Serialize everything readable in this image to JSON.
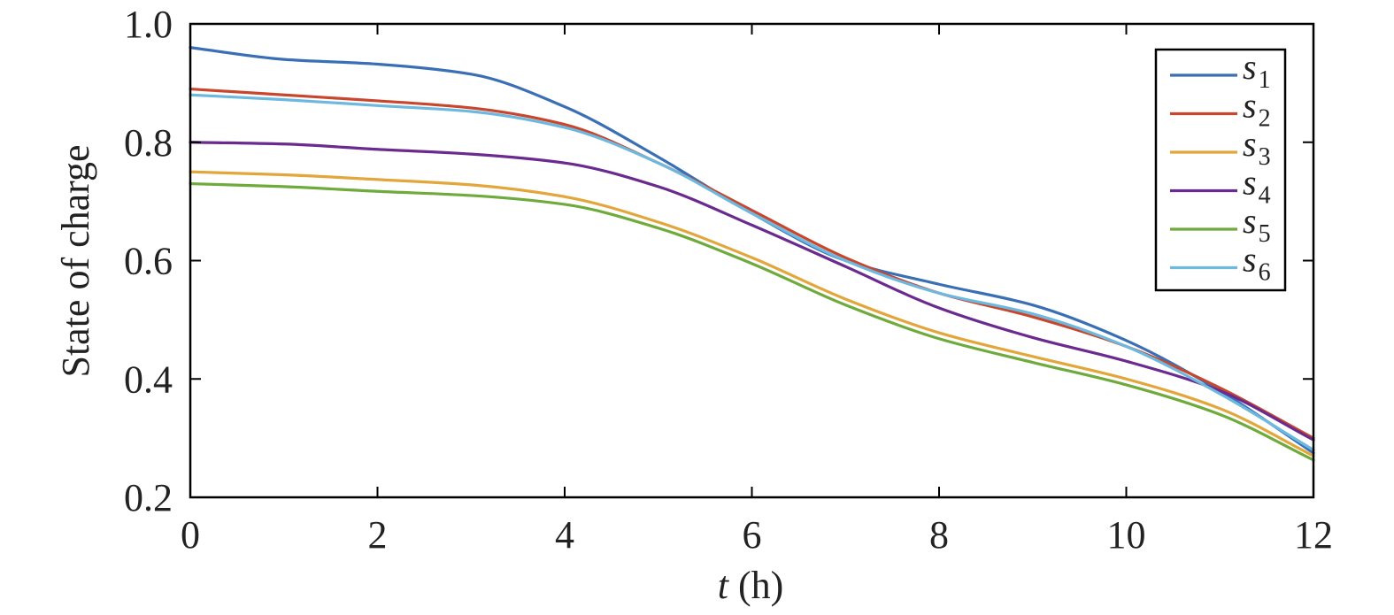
{
  "chart_data": {
    "type": "line",
    "xlabel_var": "t",
    "xlabel_unit": " (h)",
    "ylabel": "State of charge",
    "xlim": [
      0,
      12
    ],
    "ylim": [
      0.2,
      1.0
    ],
    "xticks": [
      0,
      2,
      4,
      6,
      8,
      10,
      12
    ],
    "xtick_labels": [
      "0",
      "2",
      "4",
      "6",
      "8",
      "10",
      "12"
    ],
    "yticks": [
      0.2,
      0.4,
      0.6,
      0.8,
      1.0
    ],
    "ytick_labels": [
      "0.2",
      "0.4",
      "0.6",
      "0.8",
      "1.0"
    ],
    "grid": false,
    "legend_position": "top-right",
    "x": [
      0,
      1,
      2,
      3,
      4,
      5,
      6,
      7,
      8,
      9,
      10,
      11,
      12
    ],
    "series": [
      {
        "name": "s",
        "subscript": "1",
        "color": "#3A6FB6",
        "values": [
          0.96,
          0.94,
          0.932,
          0.915,
          0.86,
          0.775,
          0.68,
          0.6,
          0.56,
          0.525,
          0.465,
          0.38,
          0.275
        ]
      },
      {
        "name": "s",
        "subscript": "2",
        "color": "#C8462E",
        "values": [
          0.89,
          0.88,
          0.87,
          0.858,
          0.83,
          0.765,
          0.685,
          0.605,
          0.545,
          0.505,
          0.455,
          0.385,
          0.3
        ]
      },
      {
        "name": "s",
        "subscript": "3",
        "color": "#E2A63A",
        "values": [
          0.75,
          0.745,
          0.737,
          0.728,
          0.708,
          0.665,
          0.605,
          0.535,
          0.478,
          0.438,
          0.4,
          0.35,
          0.27
        ]
      },
      {
        "name": "s",
        "subscript": "4",
        "color": "#6A2A8E",
        "values": [
          0.8,
          0.797,
          0.788,
          0.78,
          0.765,
          0.725,
          0.66,
          0.59,
          0.52,
          0.47,
          0.43,
          0.38,
          0.297
        ]
      },
      {
        "name": "s",
        "subscript": "5",
        "color": "#6FAA3C",
        "values": [
          0.73,
          0.725,
          0.717,
          0.71,
          0.695,
          0.655,
          0.595,
          0.525,
          0.468,
          0.428,
          0.39,
          0.34,
          0.263
        ]
      },
      {
        "name": "s",
        "subscript": "6",
        "color": "#6DB8DE",
        "values": [
          0.88,
          0.872,
          0.862,
          0.852,
          0.825,
          0.765,
          0.68,
          0.6,
          0.545,
          0.51,
          0.455,
          0.375,
          0.28
        ]
      }
    ]
  }
}
